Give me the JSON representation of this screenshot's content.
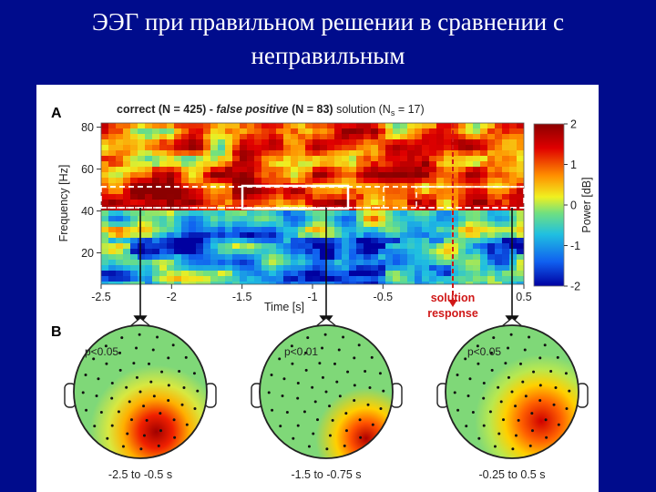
{
  "slide": {
    "title_line1": "ЭЭГ при правильном решении в сравнении с",
    "title_line2": "неправильным"
  },
  "figure": {
    "panel_a": {
      "letter": "A",
      "caption_correct": "correct (N = 425) - ",
      "caption_fp": "false positive",
      "caption_fp_n": " (N = 83)",
      "caption_solution": " solution (N",
      "caption_s_sub": "s",
      "caption_end": " = 17)",
      "marker_label_line1": "solution",
      "marker_label_line2": "response",
      "marker_color": "#d01818"
    },
    "panel_b": {
      "letter": "B",
      "maps": [
        {
          "pvalue": "p<0.05",
          "range": "-2.5 to -0.5 s"
        },
        {
          "pvalue": "p<0.01",
          "range": "-1.5 to -0.75 s"
        },
        {
          "pvalue": "p<0.05",
          "range": "-0.25 to 0.5 s"
        }
      ]
    }
  },
  "chart_data": {
    "type": "heatmap",
    "xlabel": "Time [s]",
    "ylabel": "Frequency [Hz]",
    "x_ticks": [
      "-2.5",
      "-2",
      "-1.5",
      "-1",
      "-0.5",
      "0.5"
    ],
    "x_tick_values": [
      -2.5,
      -2,
      -1.5,
      -1,
      -0.5,
      0.5
    ],
    "y_ticks": [
      "80",
      "60",
      "40",
      "20"
    ],
    "y_tick_values": [
      80,
      60,
      40,
      20
    ],
    "xlim": [
      -2.5,
      0.5
    ],
    "ylim": [
      5,
      82
    ],
    "colorbar": {
      "label": "Power [dB]",
      "ticks": [
        "2",
        "1",
        "0",
        "-1",
        "-2"
      ],
      "tick_values": [
        2,
        1,
        0,
        -1,
        -2
      ],
      "range": [
        -2,
        2
      ]
    },
    "gamma_band_hz": [
      41,
      51
    ],
    "analysis_windows_s": [
      [
        -2.5,
        -0.5
      ],
      [
        -1.5,
        -0.75
      ],
      [
        -0.25,
        0.5
      ]
    ],
    "solution_response_time_s": 0
  }
}
